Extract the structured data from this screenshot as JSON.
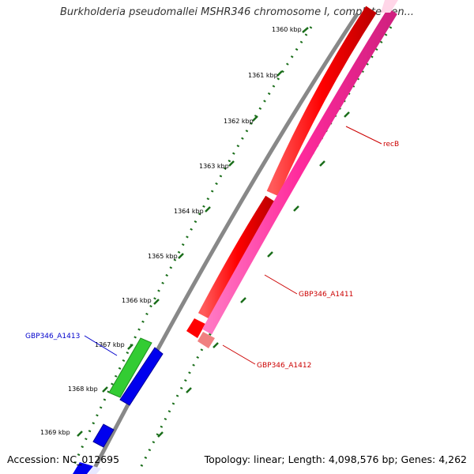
{
  "title": "Burkholderia pseudomallei MSHR346 chromosome I, complete gen...",
  "footer": {
    "accession": "Accession: NC_012695",
    "summary": "Topology: linear; Length: 4,098,576 bp; Genes: 4,262"
  },
  "ticks": [
    "1360 kbp",
    "1361 kbp",
    "1362 kbp",
    "1363 kbp",
    "1364 kbp",
    "1365 kbp",
    "1366 kbp",
    "1367 kbp",
    "1368 kbp",
    "1369 kbp"
  ],
  "genes": [
    {
      "name": "recB",
      "color": "#cc0000"
    },
    {
      "name": "GBP346_A1411",
      "color": "#cc0000"
    },
    {
      "name": "GBP346_A1412",
      "color": "#cc0000"
    },
    {
      "name": "GBP346_A1413",
      "color": "#0000cc"
    }
  ],
  "colors": {
    "red_gene": "#ff0000",
    "pink_gene": "#ff2a9c",
    "light_red_gene": "#f08080",
    "green_gene": "#33cc33",
    "blue_gene": "#0000ee",
    "backbone": "#888888",
    "ruler": "#1a6e1a"
  }
}
